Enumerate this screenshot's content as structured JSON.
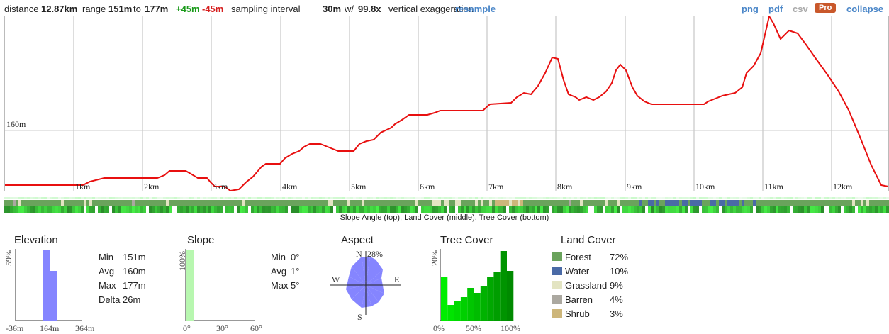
{
  "summary": {
    "distance_label": "distance",
    "distance": "12.87km",
    "range_label": "range",
    "range_min": "151m",
    "range_to": "to",
    "range_max": "177m",
    "gain": "+45m",
    "loss": "-45m",
    "interval_label": "sampling interval",
    "interval": "30m",
    "exag_prefix": "w/",
    "exaggeration": "99.8x",
    "exag_suffix": "vertical exaggeration",
    "resample": "resample"
  },
  "actions": {
    "png": "png",
    "pdf": "pdf",
    "csv": "csv",
    "pro": "Pro",
    "collapse": "collapse"
  },
  "colors": {
    "gain": "#1a9a1a",
    "loss": "#d61f1f",
    "profile": "#e81010",
    "link": "#4a86c8",
    "pro": "#c9582b"
  },
  "profile": {
    "y_label": "160m",
    "km_labels": [
      "1km",
      "2km",
      "3km",
      "4km",
      "5km",
      "6km",
      "7km",
      "8km",
      "9km",
      "10km",
      "11km",
      "12km"
    ]
  },
  "strips": {
    "caption": "Slope Angle (top), Land Cover (middle), Tree Cover (bottom)"
  },
  "elevation": {
    "title": "Elevation",
    "y_max_label": "59%",
    "x_labels": [
      "-36m",
      "164m",
      "364m"
    ],
    "stats": [
      {
        "label": "Min",
        "value": "151m"
      },
      {
        "label": "Avg",
        "value": "160m"
      },
      {
        "label": "Max",
        "value": "177m"
      },
      {
        "label": "Delta",
        "value": "26m"
      }
    ]
  },
  "slope": {
    "title": "Slope",
    "y_max_label": "100%",
    "x_labels": [
      "0°",
      "30°",
      "60°"
    ],
    "stats": [
      {
        "label": "Min",
        "value": "0°"
      },
      {
        "label": "Avg",
        "value": "1°"
      },
      {
        "label": "Max",
        "value": "5°"
      }
    ]
  },
  "aspect": {
    "title": "Aspect",
    "max_label": "28%",
    "n": "N",
    "e": "E",
    "s": "S",
    "w": "W"
  },
  "tree_cover": {
    "title": "Tree Cover",
    "y_max_label": "20%",
    "x_labels": [
      "0%",
      "50%",
      "100%"
    ]
  },
  "land_cover": {
    "title": "Land Cover",
    "items": [
      {
        "name": "Forest",
        "pct": "72%",
        "color": "#6aa35c"
      },
      {
        "name": "Water",
        "pct": "10%",
        "color": "#4a6aa6"
      },
      {
        "name": "Grassland",
        "pct": "9%",
        "color": "#e3e4c2"
      },
      {
        "name": "Barren",
        "pct": "4%",
        "color": "#aba8a0"
      },
      {
        "name": "Shrub",
        "pct": "3%",
        "color": "#cdb67a"
      }
    ]
  }
}
